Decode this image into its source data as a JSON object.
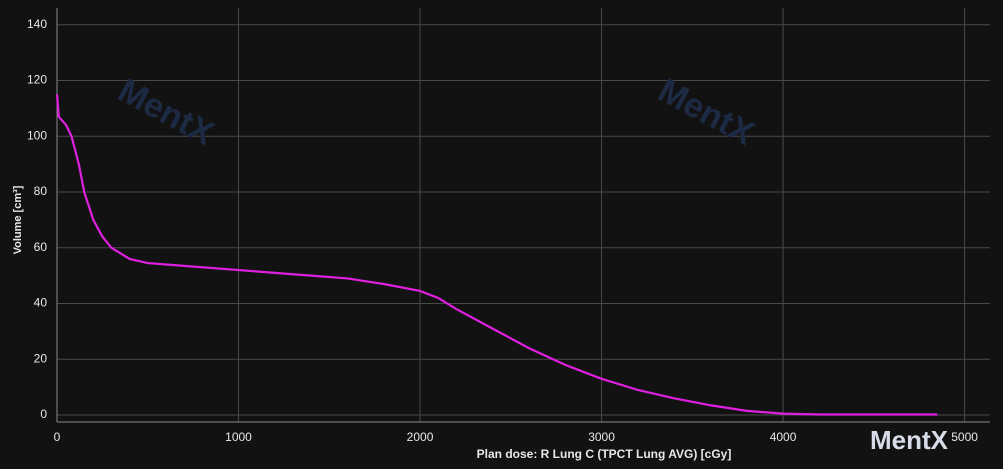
{
  "chart_data": {
    "type": "line",
    "x_label": "Plan dose: R Lung C (TPCT Lung AVG) [cGy]",
    "y_label": "Volume [cm³]",
    "watermark": "MentX",
    "x": [
      0,
      10,
      50,
      80,
      120,
      150,
      200,
      250,
      300,
      400,
      500,
      700,
      1000,
      1200,
      1400,
      1600,
      1800,
      2000,
      2100,
      2200,
      2400,
      2600,
      2800,
      3000,
      3200,
      3400,
      3600,
      3800,
      4000,
      4200,
      4500,
      4850
    ],
    "values": [
      115,
      107,
      104,
      100,
      90,
      80,
      70,
      64,
      60,
      56,
      54.5,
      53.5,
      52,
      51,
      50,
      49,
      47,
      44.5,
      42,
      38,
      31,
      24,
      18,
      13,
      9,
      6,
      3.5,
      1.5,
      0.5,
      0.2,
      0.2,
      0.2
    ],
    "color": "#e020e0",
    "xlim": [
      0,
      5140
    ],
    "ylim": [
      -2.5,
      146
    ],
    "xticks": [
      0,
      1000,
      2000,
      3000,
      4000,
      5000
    ],
    "yticks": [
      0,
      20,
      40,
      60,
      80,
      100,
      120,
      140
    ],
    "grid": true
  }
}
